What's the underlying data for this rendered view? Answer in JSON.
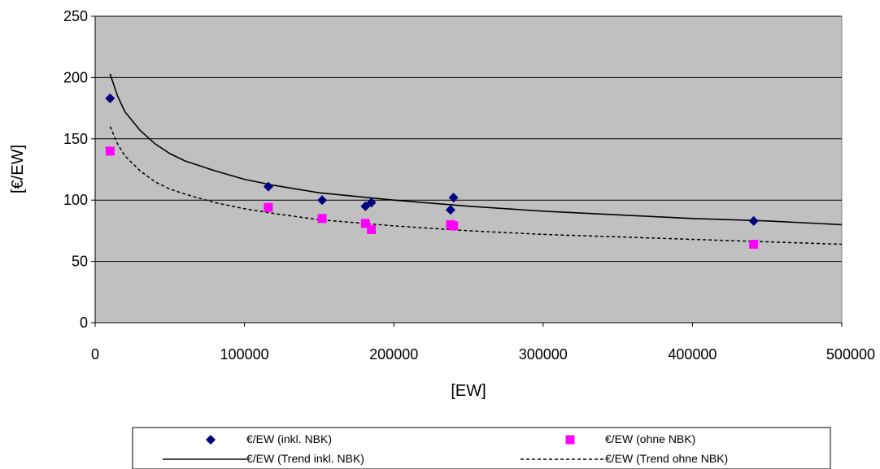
{
  "chart_data": {
    "type": "scatter",
    "xlabel": "[EW]",
    "ylabel": "[€/EW]",
    "xlim": [
      0,
      500000
    ],
    "ylim": [
      0,
      250
    ],
    "x_ticks": [
      "0",
      "100000",
      "200000",
      "300000",
      "400000",
      "500000"
    ],
    "y_ticks": [
      "0",
      "50",
      "100",
      "150",
      "200",
      "250"
    ],
    "grid": "horizontal",
    "plot_background": "#c0c0c0",
    "legend_position": "bottom",
    "series": [
      {
        "name": "€/EW (inkl. NBK)",
        "kind": "points",
        "marker": "diamond",
        "color": "#000080",
        "x": [
          10000,
          116000,
          152000,
          181000,
          185000,
          238000,
          240000,
          441000
        ],
        "y": [
          183,
          111,
          100,
          95,
          98,
          92,
          102,
          83
        ]
      },
      {
        "name": "€/EW (ohne NBK)",
        "kind": "points",
        "marker": "square",
        "color": "#ff00ff",
        "x": [
          10000,
          116000,
          152000,
          181000,
          185000,
          238000,
          240000,
          441000
        ],
        "y": [
          140,
          94,
          85,
          81,
          76,
          80,
          79,
          64
        ]
      },
      {
        "name": "€/EW (Trend inkl. NBK)",
        "kind": "line",
        "dash": "solid",
        "color": "#000000",
        "x": [
          10000,
          15000,
          20000,
          30000,
          40000,
          50000,
          60000,
          80000,
          100000,
          120000,
          150000,
          200000,
          250000,
          300000,
          350000,
          400000,
          450000,
          500000
        ],
        "y": [
          203,
          185,
          172,
          157,
          146,
          138,
          132,
          124,
          117,
          112,
          106,
          100,
          95,
          91,
          88,
          85,
          83,
          80
        ]
      },
      {
        "name": "€/EW (Trend ohne NBK)",
        "kind": "line",
        "dash": "dashed",
        "color": "#000000",
        "x": [
          10000,
          15000,
          20000,
          30000,
          40000,
          50000,
          60000,
          80000,
          100000,
          120000,
          150000,
          200000,
          250000,
          300000,
          350000,
          400000,
          450000,
          500000
        ],
        "y": [
          160,
          146,
          136,
          124,
          115,
          109,
          105,
          98,
          93,
          89,
          84,
          79,
          75,
          72,
          70,
          68,
          66,
          64
        ]
      }
    ],
    "legend": [
      "€/EW (inkl. NBK)",
      "€/EW (ohne NBK)",
      "€/EW (Trend inkl. NBK)",
      "€/EW (Trend ohne NBK)"
    ]
  }
}
